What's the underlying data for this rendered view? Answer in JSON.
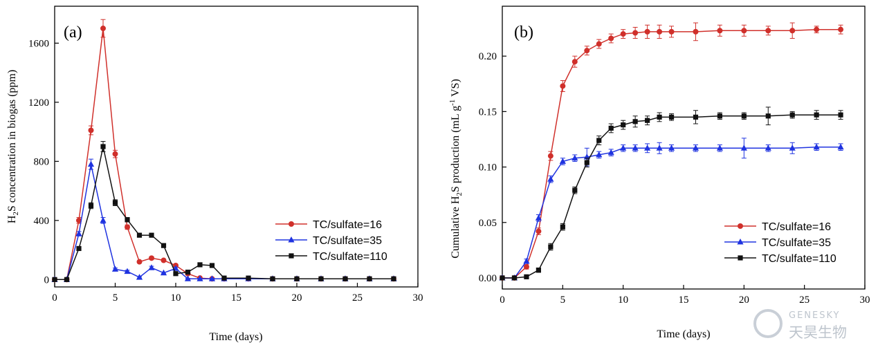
{
  "chart_data": [
    {
      "type": "line",
      "panel_label": "(a)",
      "xlabel": "Time (days)",
      "ylabel": "H2S concentration in biogas (ppm)",
      "ylabel_parts": {
        "pre": "H",
        "sub": "2",
        "post": "S concentration in biogas (ppm)"
      },
      "xlim": [
        0,
        30
      ],
      "ylim": [
        -50,
        1850
      ],
      "xticks": [
        0,
        5,
        10,
        15,
        20,
        25,
        30
      ],
      "yticks": [
        0,
        400,
        800,
        1200,
        1600
      ],
      "grid": false,
      "legend_position": "center-right",
      "series": [
        {
          "name": "TC/sulfate=16",
          "color": "#d0302b",
          "marker": "circle",
          "x": [
            0,
            1,
            2,
            3,
            4,
            5,
            6,
            7,
            8,
            9,
            10,
            11,
            12,
            13,
            14,
            16,
            18,
            20,
            22,
            24,
            26,
            28
          ],
          "y": [
            0,
            0,
            400,
            1010,
            1700,
            850,
            355,
            120,
            145,
            130,
            95,
            40,
            10,
            5,
            5,
            5,
            5,
            5,
            5,
            5,
            5,
            5
          ],
          "err": [
            0,
            0,
            20,
            30,
            60,
            25,
            15,
            8,
            10,
            8,
            8,
            5,
            3,
            3,
            3,
            3,
            3,
            3,
            3,
            3,
            3,
            3
          ]
        },
        {
          "name": "TC/sulfate=35",
          "color": "#1f33e0",
          "marker": "triangle",
          "x": [
            0,
            1,
            2,
            3,
            4,
            5,
            6,
            7,
            8,
            9,
            10,
            11,
            12,
            13,
            14,
            16,
            18,
            20,
            22,
            24,
            26,
            28
          ],
          "y": [
            0,
            0,
            310,
            780,
            400,
            70,
            55,
            15,
            80,
            45,
            75,
            5,
            5,
            5,
            5,
            5,
            5,
            5,
            5,
            5,
            5,
            5
          ],
          "err": [
            0,
            0,
            15,
            35,
            20,
            8,
            8,
            5,
            10,
            5,
            8,
            3,
            3,
            3,
            3,
            3,
            3,
            3,
            3,
            3,
            3,
            3
          ]
        },
        {
          "name": "TC/sulfate=110",
          "color": "#111111",
          "marker": "square",
          "x": [
            0,
            1,
            2,
            3,
            4,
            5,
            6,
            7,
            8,
            9,
            10,
            11,
            12,
            13,
            14,
            16,
            18,
            20,
            22,
            24,
            26,
            28
          ],
          "y": [
            0,
            0,
            210,
            500,
            900,
            520,
            405,
            300,
            300,
            230,
            40,
            50,
            100,
            95,
            10,
            10,
            5,
            5,
            5,
            5,
            5,
            5
          ],
          "err": [
            0,
            0,
            10,
            20,
            35,
            20,
            15,
            10,
            10,
            10,
            5,
            5,
            8,
            8,
            3,
            3,
            3,
            3,
            3,
            3,
            3,
            3
          ]
        }
      ]
    },
    {
      "type": "line",
      "panel_label": "(b)",
      "xlabel": "Time (days)",
      "ylabel": "Cumulative H2S production (mL g-1 VS)",
      "ylabel_parts": {
        "pre": "Cumulative H",
        "sub": "2",
        "mid": "S production (mL g",
        "sup": "-1",
        "post": " VS)"
      },
      "xlim": [
        0,
        30
      ],
      "ylim": [
        -0.01,
        0.245
      ],
      "xticks": [
        0,
        5,
        10,
        15,
        20,
        25,
        30
      ],
      "yticks": [
        0.0,
        0.05,
        0.1,
        0.15,
        0.2
      ],
      "ytick_labels": [
        "0.00",
        "0.05",
        "0.10",
        "0.15",
        "0.20"
      ],
      "grid": false,
      "legend_position": "lower-right",
      "series": [
        {
          "name": "TC/sulfate=16",
          "color": "#d0302b",
          "marker": "circle",
          "x": [
            0,
            1,
            2,
            3,
            4,
            5,
            6,
            7,
            8,
            9,
            10,
            11,
            12,
            13,
            14,
            16,
            18,
            20,
            22,
            24,
            26,
            28
          ],
          "y": [
            0,
            0,
            0.01,
            0.042,
            0.11,
            0.173,
            0.195,
            0.205,
            0.211,
            0.216,
            0.22,
            0.221,
            0.222,
            0.222,
            0.222,
            0.222,
            0.223,
            0.223,
            0.223,
            0.223,
            0.224,
            0.224
          ],
          "err": [
            0,
            0,
            0.002,
            0.003,
            0.004,
            0.005,
            0.005,
            0.004,
            0.004,
            0.004,
            0.004,
            0.005,
            0.006,
            0.006,
            0.005,
            0.008,
            0.005,
            0.005,
            0.004,
            0.007,
            0.003,
            0.004
          ]
        },
        {
          "name": "TC/sulfate=35",
          "color": "#1f33e0",
          "marker": "triangle",
          "x": [
            0,
            1,
            2,
            3,
            4,
            5,
            6,
            7,
            8,
            9,
            10,
            11,
            12,
            13,
            14,
            16,
            18,
            20,
            22,
            24,
            26,
            28
          ],
          "y": [
            0,
            0,
            0.015,
            0.054,
            0.089,
            0.105,
            0.108,
            0.109,
            0.111,
            0.113,
            0.117,
            0.117,
            0.117,
            0.117,
            0.117,
            0.117,
            0.117,
            0.117,
            0.117,
            0.117,
            0.118,
            0.118
          ],
          "err": [
            0,
            0,
            0.002,
            0.003,
            0.003,
            0.003,
            0.003,
            0.008,
            0.003,
            0.003,
            0.003,
            0.003,
            0.004,
            0.005,
            0.003,
            0.003,
            0.003,
            0.009,
            0.003,
            0.005,
            0.003,
            0.003
          ]
        },
        {
          "name": "TC/sulfate=110",
          "color": "#111111",
          "marker": "square",
          "x": [
            0,
            1,
            2,
            3,
            4,
            5,
            6,
            7,
            8,
            9,
            10,
            11,
            12,
            13,
            14,
            16,
            18,
            20,
            22,
            24,
            26,
            28
          ],
          "y": [
            0,
            0,
            0.001,
            0.007,
            0.028,
            0.046,
            0.079,
            0.104,
            0.124,
            0.135,
            0.138,
            0.141,
            0.142,
            0.145,
            0.145,
            0.145,
            0.146,
            0.146,
            0.146,
            0.147,
            0.147,
            0.147
          ],
          "err": [
            0,
            0,
            0.001,
            0.002,
            0.003,
            0.003,
            0.003,
            0.004,
            0.004,
            0.004,
            0.004,
            0.005,
            0.004,
            0.004,
            0.003,
            0.006,
            0.003,
            0.003,
            0.008,
            0.003,
            0.004,
            0.004
          ]
        }
      ]
    }
  ],
  "watermark": {
    "latin": "GENESKY",
    "cjk": "天昊生物"
  }
}
